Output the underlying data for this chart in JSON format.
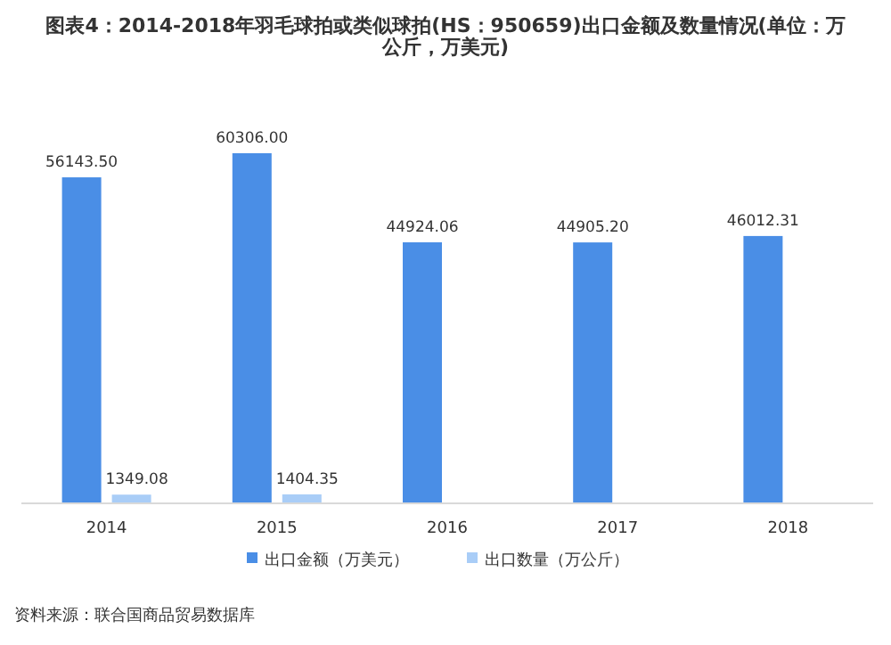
{
  "chart_data": {
    "type": "bar",
    "title": "图表4：2014-2018年羽毛球拍或类似球拍(HS：950659)出口金额及数量情况(单位：万公斤，万美元)",
    "categories": [
      "2014",
      "2015",
      "2016",
      "2017",
      "2018"
    ],
    "series": [
      {
        "name": "出口金额（万美元）",
        "color": "#4a8ee6",
        "values": [
          56143.5,
          60306.0,
          44924.06,
          44905.2,
          46012.31
        ],
        "value_labels": [
          "56143.50",
          "60306.00",
          "44924.06",
          "44905.20",
          "46012.31"
        ]
      },
      {
        "name": "出口数量（万公斤）",
        "color": "#a9cdf7",
        "values": [
          1349.08,
          1404.35,
          null,
          null,
          null
        ],
        "value_labels": [
          "1349.08",
          "1404.35",
          null,
          null,
          null
        ]
      }
    ],
    "legend": "bottom",
    "grid": false,
    "annotations": [
      "资料来源：联合国商品贸易数据库"
    ]
  }
}
